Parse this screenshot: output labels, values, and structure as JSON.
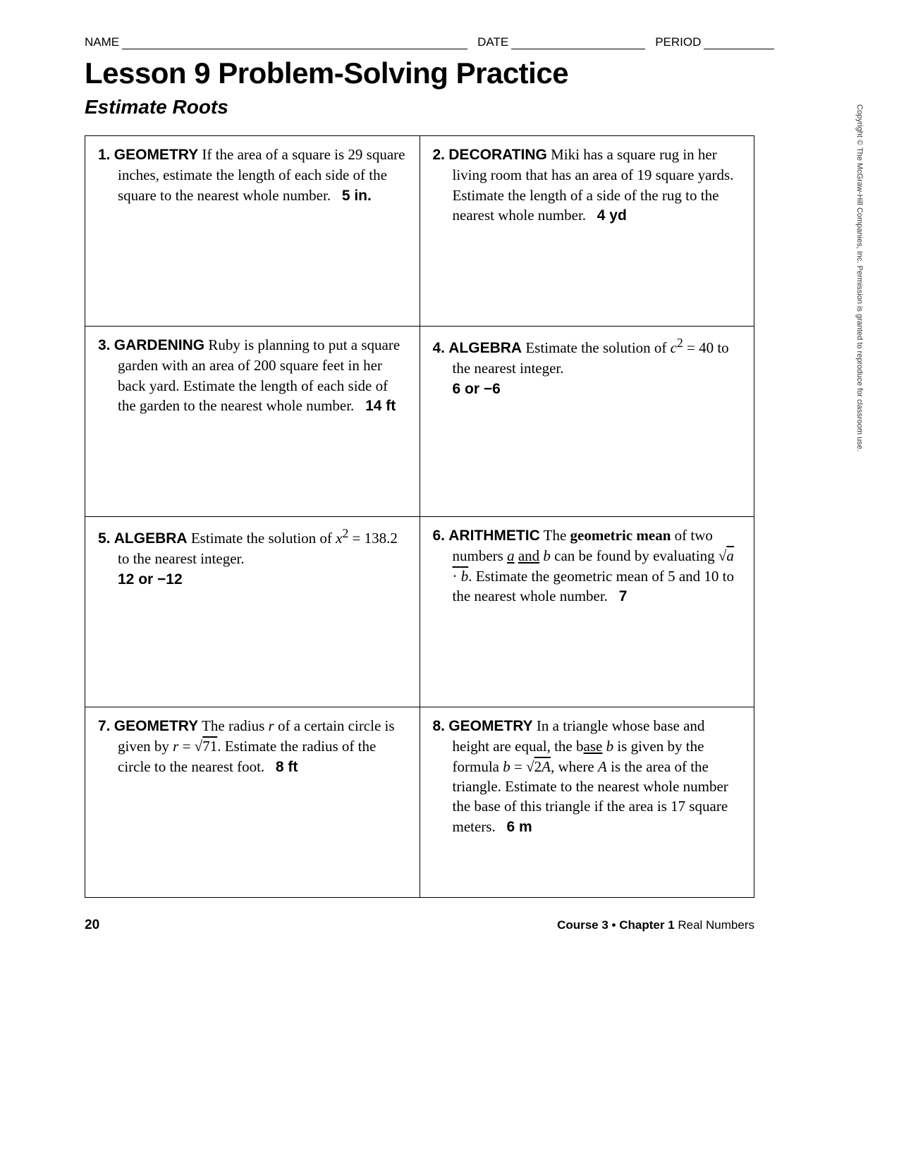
{
  "header": {
    "name_label": "NAME",
    "date_label": "DATE",
    "period_label": "PERIOD"
  },
  "title": "Lesson 9 Problem-Solving Practice",
  "subtitle": "Estimate Roots",
  "copyright": "Copyright © The McGraw-Hill Companies, Inc. Permission is granted to reproduce for classroom use.",
  "footer": {
    "page_number": "20",
    "course_bold": "Course 3 • Chapter 1",
    "course_rest": " Real Numbers"
  },
  "problems": [
    {
      "num": "1.",
      "category": "GEOMETRY",
      "body": "If the area of a square is 29 square inches, estimate the length of each side of the square to the nearest whole number.",
      "answer": "5 in."
    },
    {
      "num": "2.",
      "category": "DECORATING",
      "body": "Miki has a square rug in her living room that has an area of 19 square yards. Estimate the length of a side of the rug to the nearest whole number.",
      "answer": "4 yd"
    },
    {
      "num": "3.",
      "category": "GARDENING",
      "body": "Ruby is planning to put a square garden with an area of 200 square feet in her back yard. Estimate the length of each side of the garden to the nearest whole number.",
      "answer": "14 ft"
    },
    {
      "num": "4.",
      "category": "ALGEBRA",
      "body_html": "Estimate the solution of <em class='var'>c</em><sup>2</sup> = 40 to the nearest integer.",
      "answer": "6 or −6"
    },
    {
      "num": "5.",
      "category": "ALGEBRA",
      "body_html": "Estimate the solution of <em class='var'>x</em><sup>2</sup> = 138.2 to the nearest integer.",
      "answer": "12 or −12"
    },
    {
      "num": "6.",
      "category": "ARITHMETIC",
      "body_html": "The <strong>geometric mean</strong> of two numbers <em class='var underline-txt'>a</em> <span class='underline-txt'>and</span> <em class='var'>b</em> can be found by evaluating √<span class='sqrt'><em class='var'>a</em> · <em class='var'>b</em></span>. Estimate the geometric mean of 5 and 10 to the nearest whole number.",
      "answer": "7"
    },
    {
      "num": "7.",
      "category": "GEOMETRY",
      "body_html": "The radius <em class='var'>r</em> of a certain circle is given by <em class='var'>r</em> = √<span class='sqrt'>71</span>. Estimate the radius of the circle to the nearest foot.",
      "answer": "8 ft"
    },
    {
      "num": "8.",
      "category": "GEOMETRY",
      "body_html": "In a triangle whose base and height are equal, the b<span class='underline-txt'>ase</span> <em class='var'>b</em> is given by the formula <em class='var'>b</em> = √<span class='sqrt'>2<em class='var'>A</em></span>, where <em class='var'>A</em> is the area of the triangle. Estimate to the nearest whole number the base of this triangle if the area is 17 square meters.",
      "answer": "6 m"
    }
  ]
}
